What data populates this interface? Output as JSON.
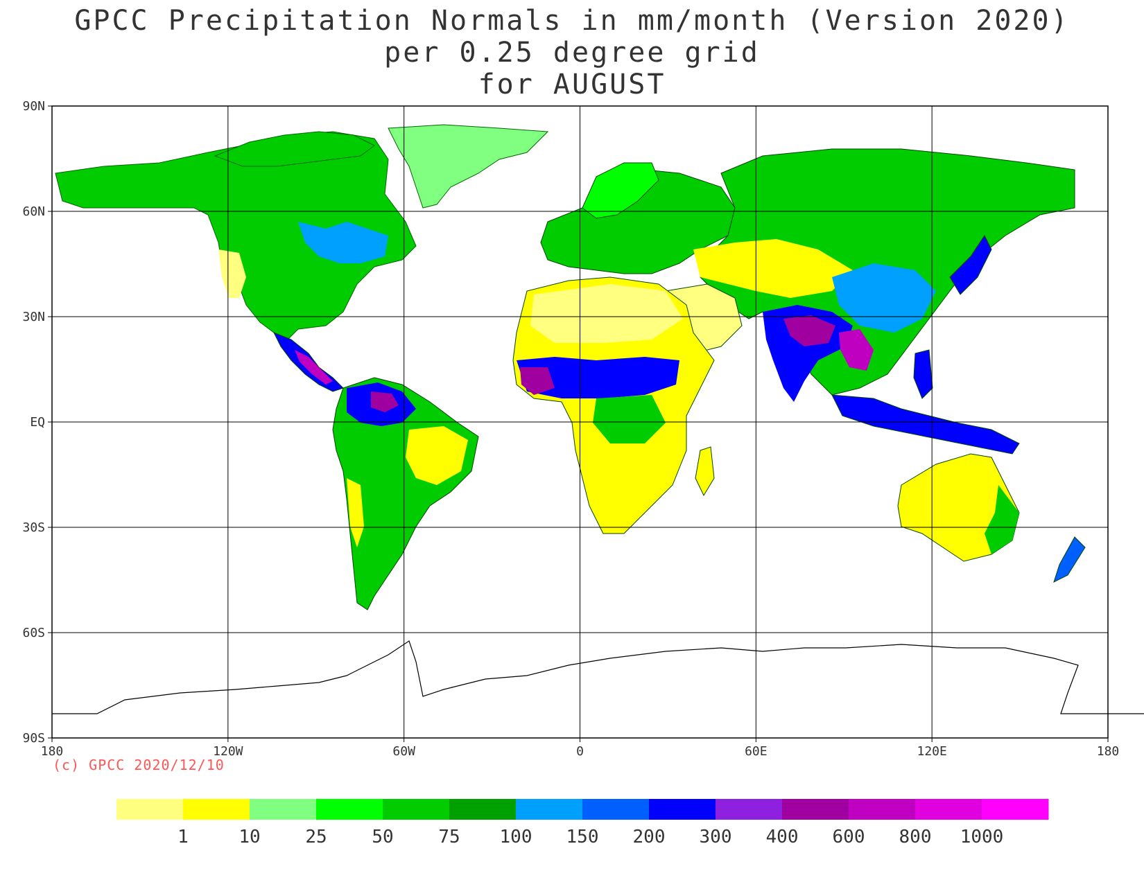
{
  "title": {
    "line1": "GPCC Precipitation Normals in mm/month (Version 2020)",
    "line2": "per 0.25 degree grid",
    "line3": "for AUGUST"
  },
  "axes": {
    "lat_labels": [
      "90N",
      "60N",
      "30N",
      "EQ",
      "30S",
      "60S",
      "90S"
    ],
    "lon_labels": [
      "180",
      "120W",
      "60W",
      "0",
      "60E",
      "120E",
      "180"
    ]
  },
  "copyright": "(c) GPCC 2020/12/10",
  "legend": {
    "colors": [
      "#ffff80",
      "#ffff00",
      "#80ff80",
      "#00ff00",
      "#00cc00",
      "#00a000",
      "#00a0ff",
      "#0060ff",
      "#0000ff",
      "#9020e0",
      "#a000a0",
      "#c000c0",
      "#e000e0",
      "#ff00ff"
    ],
    "labels": [
      "1",
      "10",
      "25",
      "50",
      "75",
      "100",
      "150",
      "200",
      "300",
      "400",
      "600",
      "800",
      "1000"
    ]
  }
}
